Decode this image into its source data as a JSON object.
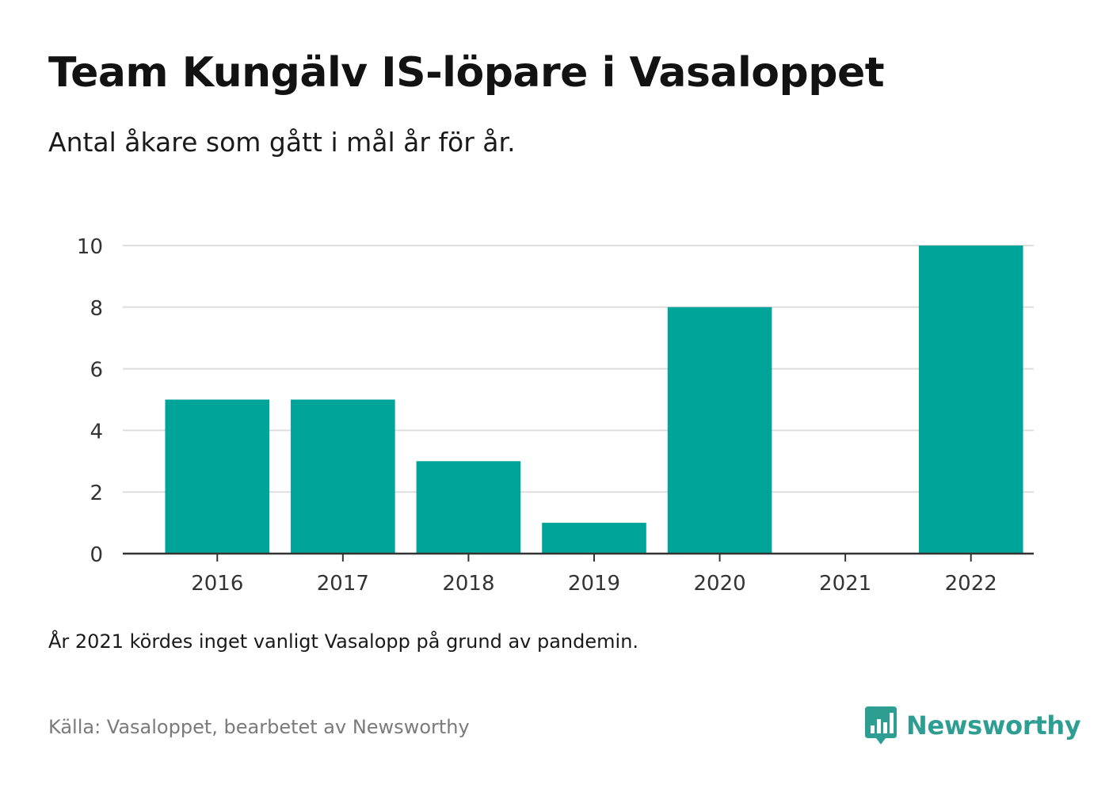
{
  "title": "Team Kungälv IS-löpare i Vasaloppet",
  "subtitle": "Antal åkare som gått i mål år för år.",
  "note": "År 2021 kördes inget vanligt Vasalopp på grund av pandemin.",
  "source": "Källa: Vasaloppet, bearbetet av Newsworthy",
  "brand": {
    "name": "Newsworthy",
    "icon": "newsworthy-logo-icon",
    "color": "#2e9d92"
  },
  "colors": {
    "bar": "#00a499",
    "grid": "#dddddd",
    "axis": "#333333"
  },
  "chart_data": {
    "type": "bar",
    "categories": [
      "2016",
      "2017",
      "2018",
      "2019",
      "2020",
      "2021",
      "2022"
    ],
    "values": [
      5,
      5,
      3,
      1,
      8,
      0,
      10
    ],
    "yticks": [
      "0",
      "2",
      "4",
      "6",
      "8",
      "10"
    ],
    "ylim": [
      0,
      10
    ],
    "grid": true,
    "xlabel": "",
    "ylabel": ""
  }
}
